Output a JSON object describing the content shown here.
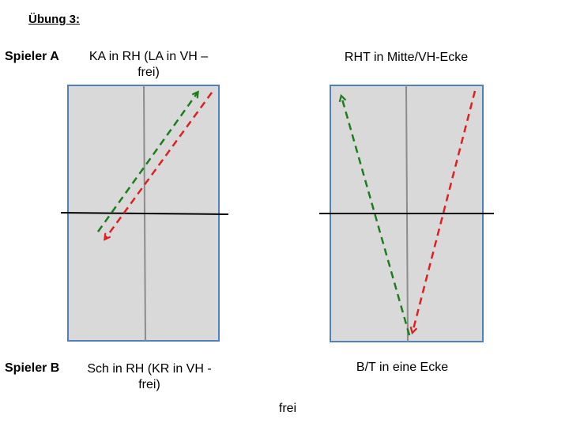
{
  "title": "Übung 3:",
  "players": {
    "a": "Spieler A",
    "b": "Spieler B"
  },
  "left": {
    "top_caption": [
      "KA in RH (LA in VH –",
      "frei)"
    ],
    "bottom_caption": [
      "Sch in RH (KR in VH -",
      "frei)"
    ]
  },
  "right": {
    "top_caption": "RHT in Mitte/VH-Ecke",
    "bottom_caption": "B/T in eine Ecke"
  },
  "footer": "frei",
  "colors": {
    "court_fill": "#d9d9d9",
    "court_border": "#4f81bd",
    "center_line": "#8c8c8c",
    "net": "#000000",
    "arrow_green": "#1a7f1a",
    "arrow_red": "#e02020"
  }
}
